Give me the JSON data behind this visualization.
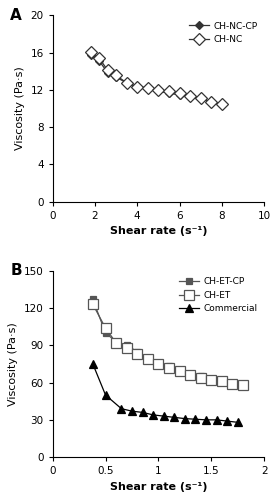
{
  "panel_A": {
    "title": "A",
    "xlabel": "Shear rate (s⁻¹)",
    "ylabel": "Viscosity (Pa·s)",
    "xlim": [
      0,
      10
    ],
    "ylim": [
      0,
      20
    ],
    "xticks": [
      0,
      2,
      4,
      6,
      8,
      10
    ],
    "yticks": [
      0,
      4,
      8,
      12,
      16,
      20
    ],
    "series": [
      {
        "label": "CH-NC-CP",
        "x": [
          1.8,
          2.2,
          2.6,
          3.0,
          3.5,
          4.0,
          4.5,
          5.0,
          5.5,
          6.0,
          6.5,
          7.0,
          7.5,
          8.0
        ],
        "y": [
          15.7,
          15.1,
          13.85,
          13.35,
          12.75,
          12.3,
          12.05,
          11.85,
          11.65,
          11.45,
          11.2,
          11.0,
          10.75,
          10.5
        ],
        "color": "#333333",
        "marker": "D",
        "marker_filled": true,
        "linestyle": "-",
        "markersize": 4.5
      },
      {
        "label": "CH-NC",
        "x": [
          1.8,
          2.2,
          2.6,
          3.0,
          3.5,
          4.0,
          4.5,
          5.0,
          5.5,
          6.0,
          6.5,
          7.0,
          7.5,
          8.0
        ],
        "y": [
          16.1,
          15.4,
          14.1,
          13.55,
          12.75,
          12.35,
          12.2,
          12.0,
          11.85,
          11.65,
          11.35,
          11.1,
          10.7,
          10.45
        ],
        "color": "#333333",
        "marker": "D",
        "marker_filled": false,
        "linestyle": "-",
        "markersize": 6.5
      }
    ]
  },
  "panel_B": {
    "title": "B",
    "xlabel": "Shear rate (s⁻¹)",
    "ylabel": "Viscosity (Pa·s)",
    "xlim": [
      0,
      2
    ],
    "ylim": [
      0,
      150
    ],
    "xticks": [
      0,
      0.5,
      1.0,
      1.5,
      2.0
    ],
    "xtick_labels": [
      "0",
      "0.5",
      "1",
      "1.5",
      "2"
    ],
    "yticks": [
      0,
      30,
      60,
      90,
      120,
      150
    ],
    "series": [
      {
        "label": "CH-ET-CP",
        "x": [
          0.38,
          0.5,
          0.6,
          0.7,
          0.8,
          0.9,
          1.0,
          1.1,
          1.2,
          1.3,
          1.4,
          1.5,
          1.6,
          1.7,
          1.8
        ],
        "y": [
          127,
          100,
          93,
          90,
          85,
          80,
          76,
          73,
          70,
          67,
          65,
          63,
          61,
          60,
          58
        ],
        "color": "#555555",
        "marker": "s",
        "marker_filled": true,
        "linestyle": "-",
        "markersize": 5
      },
      {
        "label": "CH-ET",
        "x": [
          0.38,
          0.5,
          0.6,
          0.7,
          0.8,
          0.9,
          1.0,
          1.1,
          1.2,
          1.3,
          1.4,
          1.5,
          1.6,
          1.7,
          1.8
        ],
        "y": [
          123,
          104,
          92,
          88,
          83,
          79,
          75,
          72,
          69,
          66,
          64,
          62,
          61,
          59,
          58
        ],
        "color": "#555555",
        "marker": "s",
        "marker_filled": false,
        "linestyle": "-",
        "markersize": 6.5
      },
      {
        "label": "Commercial",
        "x": [
          0.38,
          0.5,
          0.65,
          0.75,
          0.85,
          0.95,
          1.05,
          1.15,
          1.25,
          1.35,
          1.45,
          1.55,
          1.65,
          1.75
        ],
        "y": [
          75,
          50,
          39,
          37,
          36,
          34,
          33,
          32,
          31,
          30.5,
          30,
          30,
          29,
          28
        ],
        "color": "#000000",
        "marker": "^",
        "marker_filled": true,
        "linestyle": "-",
        "markersize": 6
      }
    ]
  }
}
